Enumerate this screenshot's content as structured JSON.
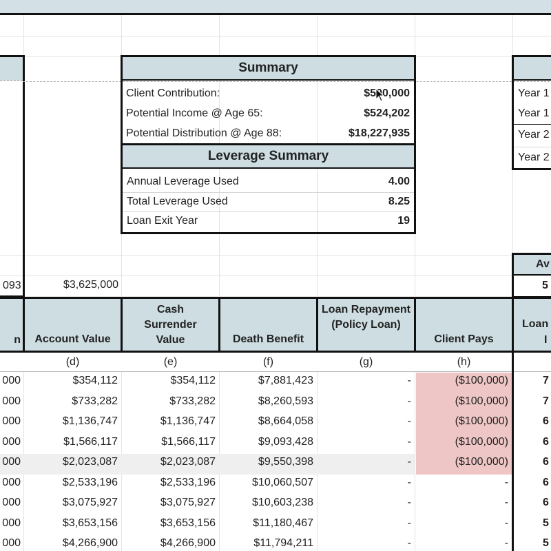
{
  "summary": {
    "title": "Summary",
    "rows": [
      {
        "label": "Client Contribution:",
        "value": "$500,000"
      },
      {
        "label": "Potential Income @ Age 65:",
        "value": "$524,202"
      },
      {
        "label": "Potential Distribution @ Age 88:",
        "value": "$18,227,935"
      }
    ]
  },
  "leverage": {
    "title": "Leverage Summary",
    "rows": [
      {
        "label": "Annual Leverage Used",
        "value": "4.00"
      },
      {
        "label": "Total Leverage Used",
        "value": "8.25"
      },
      {
        "label": "Loan Exit Year",
        "value": "19"
      }
    ]
  },
  "right_partial": {
    "rows": [
      "Year 1",
      "Year 1",
      "Year 2",
      "Year 2"
    ],
    "header_fragment": "Av",
    "value_fragment": "5",
    "column_header_fragment": "Loan",
    "column_sub_fragment": "I"
  },
  "totals_row": {
    "left_fragment": "093",
    "account_value_total": "$3,625,000"
  },
  "columns": [
    {
      "header": "Account Value",
      "letter": "(d)"
    },
    {
      "header": "Cash Surrender Value",
      "letter": "(e)"
    },
    {
      "header": "Death Benefit",
      "letter": "(f)"
    },
    {
      "header": "Loan Repayment (Policy Loan)",
      "letter": "(g)"
    },
    {
      "header": "Client Pays",
      "letter": "(h)"
    }
  ],
  "left_col_header_fragment": "n",
  "rows": [
    {
      "left": "000",
      "d": "$354,112",
      "e": "$354,112",
      "f": "$7,881,423",
      "g": "-",
      "h": "($100,000)",
      "right": "7"
    },
    {
      "left": "000",
      "d": "$733,282",
      "e": "$733,282",
      "f": "$8,260,593",
      "g": "-",
      "h": "($100,000)",
      "right": "7"
    },
    {
      "left": "000",
      "d": "$1,136,747",
      "e": "$1,136,747",
      "f": "$8,664,058",
      "g": "-",
      "h": "($100,000)",
      "right": "6"
    },
    {
      "left": "000",
      "d": "$1,566,117",
      "e": "$1,566,117",
      "f": "$9,093,428",
      "g": "-",
      "h": "($100,000)",
      "right": "6"
    },
    {
      "left": "000",
      "d": "$2,023,087",
      "e": "$2,023,087",
      "f": "$9,550,398",
      "g": "-",
      "h": "($100,000)",
      "right": "6"
    },
    {
      "left": "000",
      "d": "$2,533,196",
      "e": "$2,533,196",
      "f": "$10,060,507",
      "g": "-",
      "h": "-",
      "right": "6"
    },
    {
      "left": "000",
      "d": "$3,075,927",
      "e": "$3,075,927",
      "f": "$10,603,238",
      "g": "-",
      "h": "-",
      "right": "6"
    },
    {
      "left": "000",
      "d": "$3,653,156",
      "e": "$3,653,156",
      "f": "$11,180,467",
      "g": "-",
      "h": "-",
      "right": "5"
    },
    {
      "left": "000",
      "d": "$4,266,900",
      "e": "$4,266,900",
      "f": "$11,794,211",
      "g": "-",
      "h": "-",
      "right": "5"
    }
  ]
}
